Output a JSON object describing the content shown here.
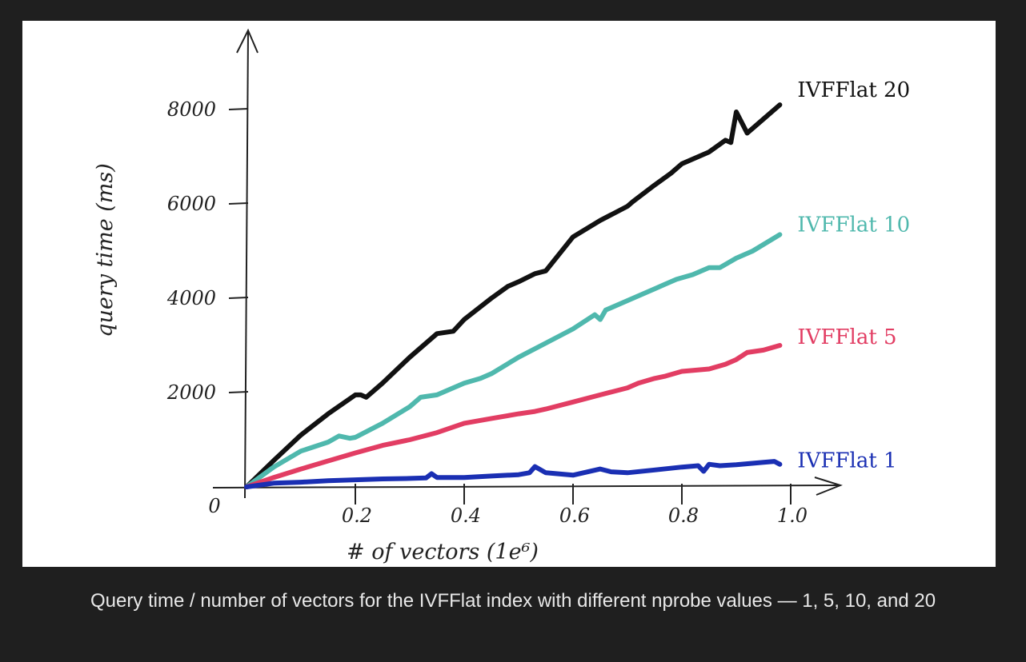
{
  "caption": "Query time / number of vectors for the IVFFlat index with different nprobe values — 1, 5, 10, and 20",
  "chart_data": {
    "type": "line",
    "title": "",
    "xlabel": "# of vectors (1e⁶)",
    "ylabel": "query time (ms)",
    "xlim": [
      0,
      1.0
    ],
    "ylim": [
      0,
      8000
    ],
    "origin_label": "0",
    "xticks": [
      0.2,
      0.4,
      0.6,
      0.8,
      1.0
    ],
    "xtick_labels": [
      "0.2",
      "0.4",
      "0.6",
      "0.8",
      "1.0"
    ],
    "yticks": [
      2000,
      4000,
      6000,
      8000
    ],
    "ytick_labels": [
      "2000",
      "4000",
      "6000",
      "8000"
    ],
    "grid": false,
    "legend": "labels at line ends (right)",
    "series": [
      {
        "name": "IVFFlat 20",
        "color": "#111111",
        "x": [
          0,
          0.05,
          0.1,
          0.15,
          0.2,
          0.21,
          0.22,
          0.25,
          0.3,
          0.35,
          0.38,
          0.4,
          0.45,
          0.48,
          0.5,
          0.53,
          0.55,
          0.6,
          0.65,
          0.7,
          0.71,
          0.75,
          0.78,
          0.8,
          0.85,
          0.88,
          0.89,
          0.9,
          0.92,
          0.95,
          0.98
        ],
        "y": [
          0,
          560,
          1100,
          1550,
          1950,
          1950,
          1900,
          2200,
          2750,
          3250,
          3300,
          3550,
          4000,
          4250,
          4350,
          4520,
          4580,
          5300,
          5650,
          5950,
          6050,
          6400,
          6650,
          6850,
          7100,
          7350,
          7300,
          7950,
          7500,
          7800,
          8100
        ]
      },
      {
        "name": "IVFFlat 10",
        "color": "#4fb8ad",
        "x": [
          0,
          0.05,
          0.1,
          0.15,
          0.17,
          0.19,
          0.2,
          0.25,
          0.3,
          0.32,
          0.35,
          0.4,
          0.43,
          0.45,
          0.5,
          0.55,
          0.6,
          0.64,
          0.65,
          0.66,
          0.7,
          0.75,
          0.77,
          0.79,
          0.82,
          0.85,
          0.87,
          0.9,
          0.93,
          0.98
        ],
        "y": [
          0,
          420,
          760,
          950,
          1080,
          1030,
          1050,
          1350,
          1700,
          1900,
          1950,
          2200,
          2300,
          2400,
          2750,
          3050,
          3350,
          3650,
          3550,
          3750,
          3950,
          4200,
          4300,
          4400,
          4500,
          4650,
          4650,
          4850,
          5000,
          5350
        ]
      },
      {
        "name": "IVFFlat 5",
        "color": "#e23d63",
        "x": [
          0,
          0.05,
          0.1,
          0.15,
          0.2,
          0.25,
          0.3,
          0.35,
          0.4,
          0.45,
          0.5,
          0.53,
          0.55,
          0.6,
          0.65,
          0.7,
          0.72,
          0.75,
          0.77,
          0.8,
          0.85,
          0.88,
          0.9,
          0.92,
          0.95,
          0.98
        ],
        "y": [
          0,
          200,
          380,
          550,
          720,
          880,
          1000,
          1150,
          1350,
          1450,
          1550,
          1600,
          1650,
          1800,
          1950,
          2100,
          2200,
          2300,
          2350,
          2450,
          2500,
          2600,
          2700,
          2850,
          2900,
          3000
        ]
      },
      {
        "name": "IVFFlat 1",
        "color": "#1a2fb3",
        "x": [
          0,
          0.05,
          0.1,
          0.15,
          0.2,
          0.25,
          0.3,
          0.33,
          0.34,
          0.35,
          0.4,
          0.45,
          0.5,
          0.52,
          0.53,
          0.55,
          0.6,
          0.65,
          0.67,
          0.7,
          0.75,
          0.8,
          0.83,
          0.84,
          0.85,
          0.87,
          0.9,
          0.95,
          0.97,
          0.98
        ],
        "y": [
          0,
          80,
          100,
          130,
          150,
          170,
          180,
          190,
          280,
          200,
          200,
          230,
          260,
          300,
          430,
          300,
          250,
          380,
          320,
          300,
          360,
          420,
          450,
          330,
          480,
          450,
          470,
          520,
          540,
          480
        ]
      }
    ]
  }
}
